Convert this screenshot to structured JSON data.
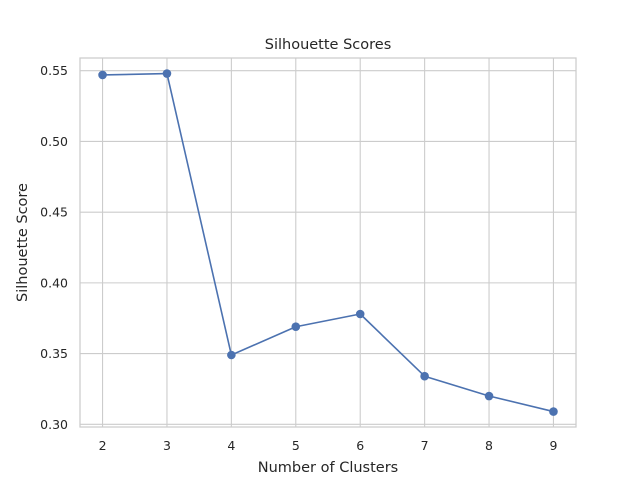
{
  "chart_data": {
    "type": "line",
    "title": "Silhouette Scores",
    "xlabel": "Number of Clusters",
    "ylabel": "Silhouette Score",
    "x": [
      2,
      3,
      4,
      5,
      6,
      7,
      8,
      9
    ],
    "series": [
      {
        "values": [
          0.547,
          0.548,
          0.349,
          0.369,
          0.378,
          0.334,
          0.32,
          0.309
        ]
      }
    ],
    "xticks": [
      "2",
      "3",
      "4",
      "5",
      "6",
      "7",
      "8",
      "9"
    ],
    "yticks": [
      "0.30",
      "0.35",
      "0.40",
      "0.45",
      "0.50",
      "0.55"
    ],
    "xlim": [
      1.65,
      9.35
    ],
    "ylim": [
      0.2981,
      0.559
    ],
    "grid": true,
    "line_color": "#4c72b0",
    "grid_color": "#cccccc"
  }
}
